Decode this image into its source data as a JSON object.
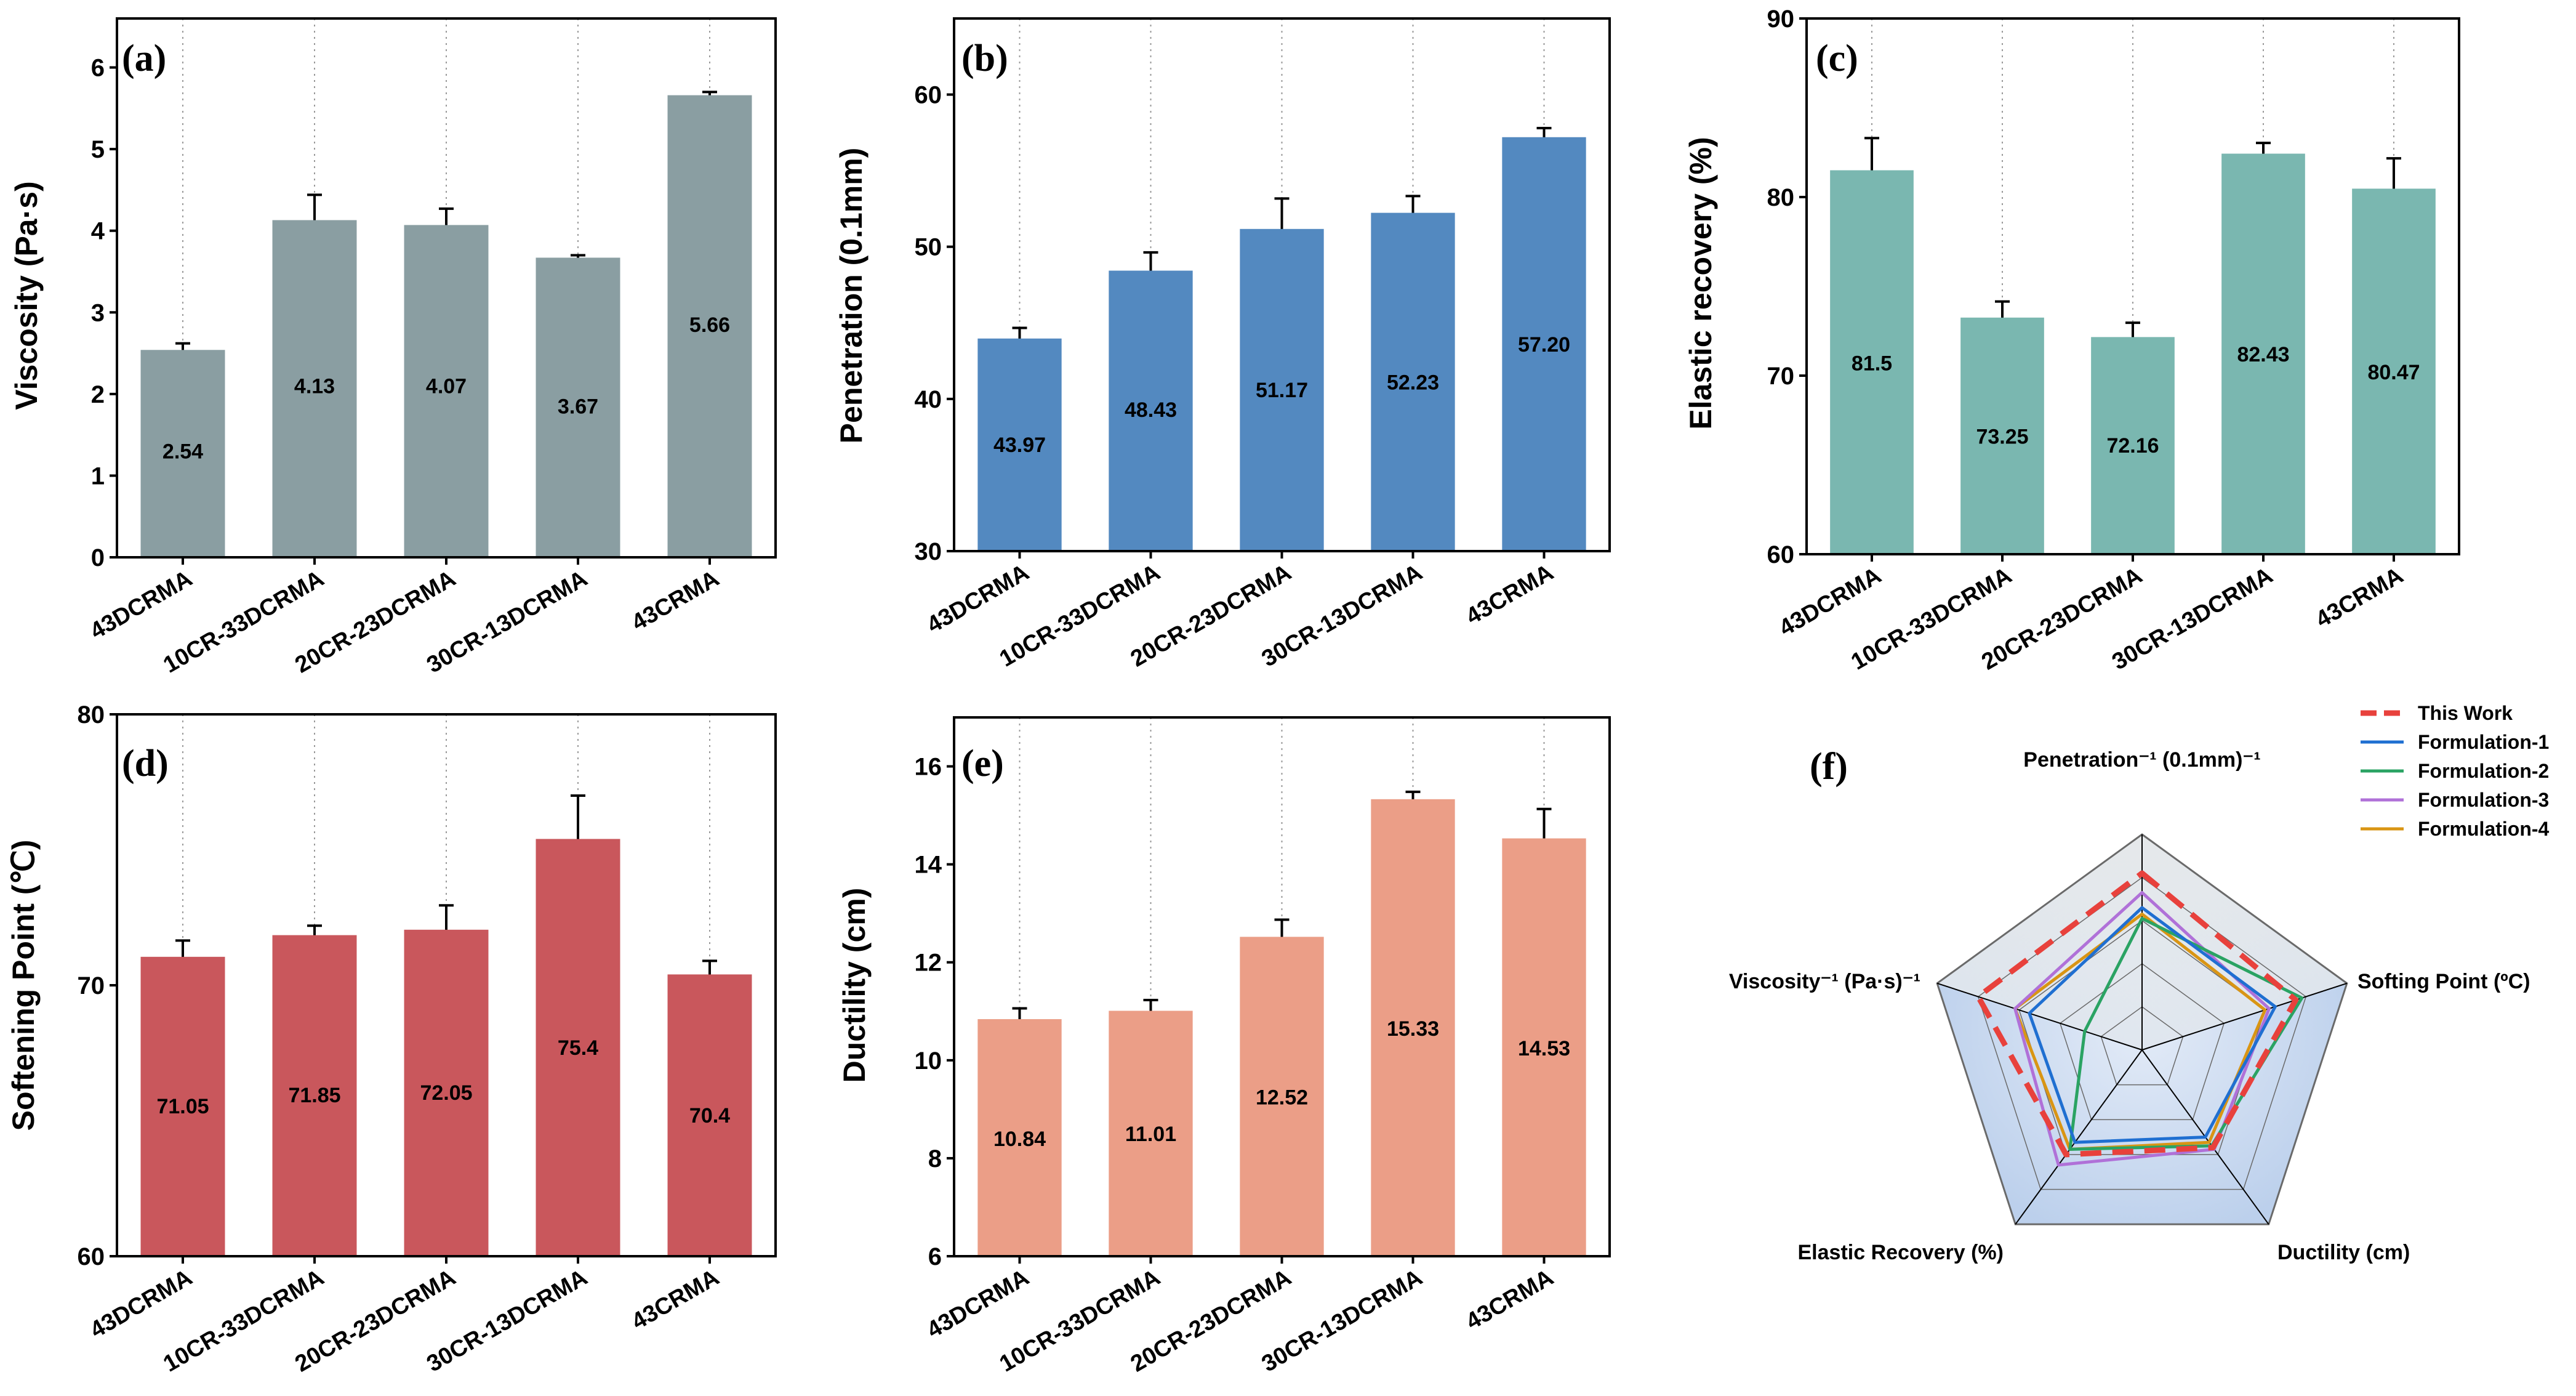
{
  "chart_data": [
    {
      "id": "a",
      "panel_label": "(a)",
      "type": "bar",
      "ylabel": "Viscosity (Pa·s)",
      "categories": [
        "43DCRMA",
        "10CR-33DCRMA",
        "20CR-23DCRMA",
        "30CR-13DCRMA",
        "43CRMA"
      ],
      "values": [
        2.54,
        4.13,
        4.07,
        3.67,
        5.66
      ],
      "value_labels": [
        "2.54",
        "4.13",
        "4.07",
        "3.67",
        "5.66"
      ],
      "errors": [
        0.08,
        0.31,
        0.2,
        0.03,
        0.04
      ],
      "ylim": [
        0,
        6.6
      ],
      "yticks": [
        0,
        1,
        2,
        3,
        4,
        5,
        6
      ],
      "ytick_labels": [
        "0",
        "1",
        "2",
        "3",
        "4",
        "5",
        "6"
      ],
      "label_positions": [
        1.3,
        2.1,
        2.1,
        1.85,
        2.85
      ],
      "color": "#8a9ea2"
    },
    {
      "id": "b",
      "panel_label": "(b)",
      "type": "bar",
      "ylabel": "Penetration (0.1mm)",
      "categories": [
        "43DCRMA",
        "10CR-33DCRMA",
        "20CR-23DCRMA",
        "30CR-13DCRMA",
        "43CRMA"
      ],
      "values": [
        43.97,
        48.43,
        51.17,
        52.23,
        57.2
      ],
      "value_labels": [
        "43.97",
        "48.43",
        "51.17",
        "52.23",
        "57.20"
      ],
      "errors": [
        0.7,
        1.2,
        2.0,
        1.1,
        0.6
      ],
      "ylim": [
        30,
        65
      ],
      "yticks": [
        30,
        40,
        50,
        60
      ],
      "ytick_labels": [
        "30",
        "40",
        "50",
        "60"
      ],
      "label_positions": [
        37,
        39.3,
        40.6,
        41.1,
        43.6
      ],
      "color": "#5389c0"
    },
    {
      "id": "c",
      "panel_label": "(c)",
      "type": "bar",
      "ylabel": "Elastic recovery (%)",
      "categories": [
        "43DCRMA",
        "10CR-33DCRMA",
        "20CR-23DCRMA",
        "30CR-13DCRMA",
        "43CRMA"
      ],
      "values": [
        81.5,
        73.25,
        72.16,
        82.43,
        80.47
      ],
      "value_labels": [
        "81.5",
        "73.25",
        "72.16",
        "82.43",
        "80.47"
      ],
      "errors": [
        1.8,
        0.9,
        0.8,
        0.6,
        1.7
      ],
      "ylim": [
        60,
        90
      ],
      "yticks": [
        60,
        70,
        80,
        90
      ],
      "ytick_labels": [
        "60",
        "70",
        "80",
        "90"
      ],
      "label_positions": [
        70.7,
        66.6,
        66.1,
        71.2,
        70.2
      ],
      "color": "#7ab7b0"
    },
    {
      "id": "d",
      "panel_label": "(d)",
      "type": "bar",
      "ylabel": "Softening Point (℃)",
      "categories": [
        "43DCRMA",
        "10CR-33DCRMA",
        "20CR-23DCRMA",
        "30CR-13DCRMA",
        "43CRMA"
      ],
      "values": [
        71.05,
        71.85,
        72.05,
        75.4,
        70.4
      ],
      "value_labels": [
        "71.05",
        "71.85",
        "72.05",
        "75.4",
        "70.4"
      ],
      "errors": [
        0.6,
        0.35,
        0.9,
        1.6,
        0.5
      ],
      "ylim": [
        60,
        80
      ],
      "yticks": [
        60,
        70,
        80
      ],
      "ytick_labels": [
        "60",
        "70",
        "80"
      ],
      "label_positions": [
        65.55,
        65.95,
        66.05,
        67.7,
        65.2
      ],
      "color": "#c9575c"
    },
    {
      "id": "e",
      "panel_label": "(e)",
      "type": "bar",
      "ylabel": "Ductility (cm)",
      "categories": [
        "43DCRMA",
        "10CR-33DCRMA",
        "20CR-23DCRMA",
        "30CR-13DCRMA",
        "43CRMA"
      ],
      "values": [
        10.84,
        11.01,
        12.52,
        15.33,
        14.53
      ],
      "value_labels": [
        "10.84",
        "11.01",
        "12.52",
        "15.33",
        "14.53"
      ],
      "errors": [
        0.22,
        0.22,
        0.35,
        0.15,
        0.6
      ],
      "ylim": [
        6,
        17
      ],
      "yticks": [
        6,
        8,
        10,
        12,
        14,
        16
      ],
      "ytick_labels": [
        "6",
        "8",
        "10",
        "12",
        "14",
        "16"
      ],
      "label_positions": [
        8.4,
        8.5,
        9.25,
        10.65,
        10.25
      ],
      "color": "#eb9e87"
    },
    {
      "id": "f",
      "panel_label": "(f)",
      "type": "radar",
      "axes": [
        "Penetration⁻¹ (0.1mm)⁻¹",
        "Softing Point (ºC)",
        "Ductility (cm)",
        "Elastic Recovery (%)",
        "Viscosity⁻¹ (Pa·s)⁻¹"
      ],
      "levels": 5,
      "series": [
        {
          "name": "This Work",
          "color": "#e8413c",
          "dashed": true,
          "values": [
            0.82,
            0.75,
            0.56,
            0.6,
            0.8
          ]
        },
        {
          "name": "Formulation-1",
          "color": "#1f6fd1",
          "dashed": false,
          "values": [
            0.66,
            0.65,
            0.5,
            0.53,
            0.55
          ]
        },
        {
          "name": "Formulation-2",
          "color": "#2aa363",
          "dashed": false,
          "values": [
            0.61,
            0.78,
            0.55,
            0.57,
            0.28
          ]
        },
        {
          "name": "Formulation-3",
          "color": "#b071d8",
          "dashed": false,
          "values": [
            0.73,
            0.62,
            0.57,
            0.66,
            0.62
          ]
        },
        {
          "name": "Formulation-4",
          "color": "#d99514",
          "dashed": false,
          "values": [
            0.63,
            0.6,
            0.53,
            0.57,
            0.62
          ]
        }
      ]
    }
  ]
}
